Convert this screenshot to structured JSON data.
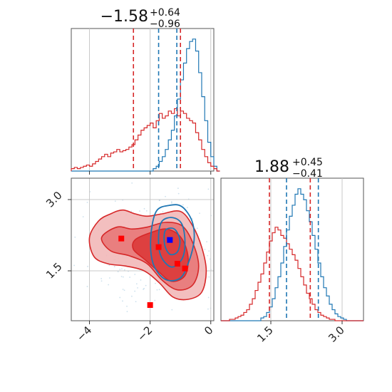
{
  "colors": {
    "red": "#d62728",
    "blue": "#1f77b4",
    "grid": "#c8c8c8",
    "axis": "#555555"
  },
  "chart_data": [
    {
      "type": "histogram",
      "panel": "top-left",
      "title": {
        "value": "−1.58",
        "plus": "+0.64",
        "minus": "−0.96"
      },
      "xlim": [
        -4.6,
        0.1
      ],
      "grid": true,
      "series": [
        {
          "name": "",
          "color": "#1f77b4",
          "bin_edges_start": -4.6,
          "bin_width": 0.1,
          "counts": [
            0,
            0,
            0,
            0,
            0,
            0,
            0,
            0,
            0,
            0,
            0,
            0,
            0,
            0,
            0,
            0,
            0,
            0,
            0,
            0,
            0,
            0,
            0,
            0,
            0,
            0,
            0,
            0.2,
            0.4,
            0.8,
            1.2,
            1.8,
            2.6,
            3.4,
            4.6,
            6.0,
            7.6,
            9.0,
            10.2,
            10.8,
            11.0,
            10.0,
            8.2,
            6.2,
            4.2,
            2.4,
            1.2,
            0.4,
            0
          ]
        },
        {
          "name": "",
          "color": "#d62728",
          "bin_edges_start": -4.6,
          "bin_width": 0.1,
          "counts": [
            0.2,
            0.3,
            0.2,
            0.3,
            0.4,
            0.5,
            0.4,
            0.6,
            0.8,
            1.0,
            1.2,
            1.4,
            1.2,
            1.5,
            1.6,
            1.8,
            1.6,
            1.7,
            1.8,
            2.0,
            2.2,
            2.6,
            3.0,
            3.4,
            3.6,
            3.8,
            4.0,
            3.6,
            4.2,
            4.8,
            4.4,
            4.6,
            5.0,
            4.8,
            5.2,
            4.6,
            5.0,
            4.8,
            4.4,
            4.2,
            4.0,
            3.2,
            2.6,
            1.8,
            1.2,
            0.7,
            0.4,
            0.2,
            0
          ]
        }
      ],
      "quantiles": [
        {
          "color": "#d62728",
          "values": [
            -2.55,
            -1.0
          ]
        },
        {
          "color": "#1f77b4",
          "values": [
            -1.72,
            -1.12
          ]
        }
      ]
    },
    {
      "type": "scatter-contour",
      "panel": "bottom-left",
      "xlim": [
        -4.6,
        0.1
      ],
      "ylim": [
        0.45,
        3.45
      ],
      "xticks": [
        -4,
        -2,
        0
      ],
      "yticks": [
        1.5,
        3.0
      ],
      "xtick_labels": [
        "−4",
        "−2",
        "0"
      ],
      "ytick_labels": [
        "1.5",
        "3.0"
      ],
      "grid": true,
      "red_markers": [
        {
          "x": -2.95,
          "y": 2.18
        },
        {
          "x": -1.72,
          "y": 2.0
        },
        {
          "x": -1.1,
          "y": 1.65
        },
        {
          "x": -0.85,
          "y": 1.55
        },
        {
          "x": -2.0,
          "y": 0.78
        }
      ],
      "blue_markers": [
        {
          "x": -1.35,
          "y": 2.15
        }
      ],
      "red_contours": [
        {
          "level": "outer",
          "points": [
            [
              -4.0,
              2.2
            ],
            [
              -3.7,
              2.55
            ],
            [
              -3.3,
              2.7
            ],
            [
              -2.9,
              2.78
            ],
            [
              -2.5,
              2.7
            ],
            [
              -2.1,
              2.65
            ],
            [
              -1.6,
              2.7
            ],
            [
              -1.0,
              2.75
            ],
            [
              -0.6,
              2.45
            ],
            [
              -0.3,
              2.0
            ],
            [
              -0.15,
              1.5
            ],
            [
              -0.3,
              1.05
            ],
            [
              -0.75,
              0.9
            ],
            [
              -1.25,
              0.95
            ],
            [
              -1.7,
              1.25
            ],
            [
              -2.2,
              1.5
            ],
            [
              -2.8,
              1.6
            ],
            [
              -3.4,
              1.65
            ],
            [
              -3.85,
              1.8
            ]
          ]
        },
        {
          "level": "middle",
          "points": [
            [
              -3.6,
              2.2
            ],
            [
              -3.1,
              2.42
            ],
            [
              -2.6,
              2.38
            ],
            [
              -2.1,
              2.42
            ],
            [
              -1.5,
              2.52
            ],
            [
              -0.95,
              2.45
            ],
            [
              -0.6,
              2.1
            ],
            [
              -0.4,
              1.6
            ],
            [
              -0.6,
              1.2
            ],
            [
              -1.1,
              1.1
            ],
            [
              -1.6,
              1.3
            ],
            [
              -2.1,
              1.65
            ],
            [
              -2.7,
              1.82
            ],
            [
              -3.3,
              1.92
            ]
          ]
        },
        {
          "level": "inner",
          "points": [
            [
              -2.5,
              2.15
            ],
            [
              -2.0,
              2.3
            ],
            [
              -1.45,
              2.38
            ],
            [
              -0.98,
              2.2
            ],
            [
              -0.75,
              1.8
            ],
            [
              -0.85,
              1.4
            ],
            [
              -1.3,
              1.28
            ],
            [
              -1.75,
              1.5
            ],
            [
              -2.2,
              1.75
            ],
            [
              -2.55,
              1.95
            ]
          ]
        }
      ],
      "blue_contours": [
        {
          "level": "outer",
          "points": [
            [
              -1.8,
              2.75
            ],
            [
              -1.35,
              2.88
            ],
            [
              -0.95,
              2.85
            ],
            [
              -0.62,
              2.55
            ],
            [
              -0.55,
              2.15
            ],
            [
              -0.72,
              1.7
            ],
            [
              -1.0,
              1.35
            ],
            [
              -1.5,
              1.32
            ],
            [
              -1.9,
              1.65
            ],
            [
              -1.98,
              2.2
            ]
          ]
        },
        {
          "level": "middle",
          "points": [
            [
              -1.6,
              2.55
            ],
            [
              -1.25,
              2.62
            ],
            [
              -0.95,
              2.48
            ],
            [
              -0.85,
              2.1
            ],
            [
              -0.95,
              1.75
            ],
            [
              -1.3,
              1.58
            ],
            [
              -1.65,
              1.82
            ],
            [
              -1.72,
              2.25
            ]
          ]
        },
        {
          "level": "inner",
          "points": [
            [
              -1.5,
              2.35
            ],
            [
              -1.2,
              2.38
            ],
            [
              -1.02,
              2.15
            ],
            [
              -1.1,
              1.9
            ],
            [
              -1.35,
              1.85
            ],
            [
              -1.52,
              2.05
            ]
          ]
        }
      ]
    },
    {
      "type": "histogram",
      "panel": "bottom-right",
      "title": {
        "value": "1.88",
        "plus": "+0.45",
        "minus": "−0.41"
      },
      "xlim": [
        0.45,
        3.45
      ],
      "xticks": [
        1.5,
        3.0
      ],
      "xtick_labels": [
        "1.5",
        "3.0"
      ],
      "grid": true,
      "series": [
        {
          "name": "",
          "color": "#1f77b4",
          "bin_edges_start": 0.45,
          "bin_width": 0.06,
          "counts": [
            0,
            0,
            0,
            0,
            0,
            0,
            0,
            0,
            0,
            0,
            0,
            0,
            0,
            0,
            0.2,
            0.3,
            0.6,
            1.0,
            1.6,
            2.4,
            3.2,
            4.2,
            5.4,
            6.6,
            7.6,
            8.4,
            9.2,
            9.6,
            9.2,
            8.8,
            8.0,
            7.2,
            6.2,
            5.2,
            4.2,
            3.2,
            2.4,
            1.8,
            1.2,
            0.8,
            0.5,
            0.3,
            0.2,
            0.1,
            0,
            0,
            0,
            0,
            0,
            0
          ]
        },
        {
          "name": "",
          "color": "#d62728",
          "bin_edges_start": 0.45,
          "bin_width": 0.06,
          "counts": [
            0,
            0,
            0,
            0.1,
            0.1,
            0.2,
            0.3,
            0.4,
            0.6,
            0.8,
            1.2,
            1.6,
            2.2,
            2.8,
            3.4,
            4.2,
            5.0,
            5.8,
            6.4,
            6.8,
            6.6,
            6.2,
            6.0,
            5.6,
            5.2,
            4.8,
            4.4,
            3.8,
            3.2,
            2.6,
            2.0,
            1.6,
            1.2,
            0.8,
            0.6,
            0.4,
            0.3,
            0.2,
            0.1,
            0.1,
            0,
            0,
            0,
            0,
            0,
            0,
            0,
            0,
            0,
            0
          ]
        }
      ],
      "quantiles": [
        {
          "color": "#d62728",
          "values": [
            1.47,
            2.33
          ]
        },
        {
          "color": "#1f77b4",
          "values": [
            1.83,
            2.5
          ]
        }
      ]
    }
  ]
}
